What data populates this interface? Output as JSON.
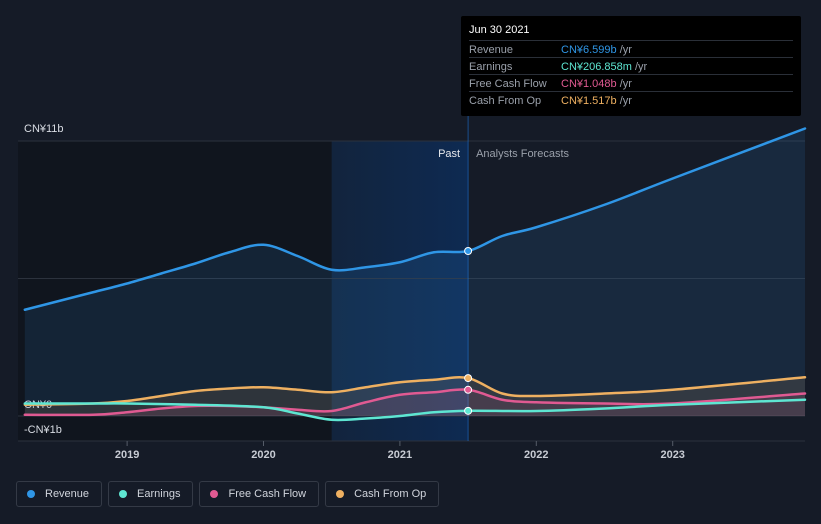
{
  "tooltip": {
    "date": "Jun 30 2021",
    "rows": [
      {
        "label": "Revenue",
        "value": "CN¥6.599b",
        "unit": "/yr",
        "color": "#2f96e6"
      },
      {
        "label": "Earnings",
        "value": "CN¥206.858m",
        "unit": "/yr",
        "color": "#5ee6d2"
      },
      {
        "label": "Free Cash Flow",
        "value": "CN¥1.048b",
        "unit": "/yr",
        "color": "#e05a92"
      },
      {
        "label": "Cash From Op",
        "value": "CN¥1.517b",
        "unit": "/yr",
        "color": "#eeb061"
      }
    ]
  },
  "legend": [
    {
      "label": "Revenue",
      "color": "#2f96e6"
    },
    {
      "label": "Earnings",
      "color": "#5ee6d2"
    },
    {
      "label": "Free Cash Flow",
      "color": "#e05a92"
    },
    {
      "label": "Cash From Op",
      "color": "#eeb061"
    }
  ],
  "chart_data": {
    "type": "line",
    "title": "",
    "xlabel": "",
    "ylabel": "",
    "past_label": "Past",
    "forecast_label": "Analysts Forecasts",
    "y_tick_labels": [
      "CN¥11b",
      "CN¥0",
      "-CN¥1b"
    ],
    "x_tick_labels": [
      "2019",
      "2020",
      "2021",
      "2022",
      "2023"
    ],
    "x_ticks": [
      2019.0,
      2020.0,
      2021.0,
      2022.0,
      2023.0
    ],
    "xlim": [
      2018.2,
      2023.97
    ],
    "ylim": [
      -1,
      11
    ],
    "past_start": 2020.5,
    "present": 2021.5,
    "grid": true,
    "series": [
      {
        "name": "Revenue",
        "color": "#2f96e6",
        "area": true,
        "points": [
          [
            2018.25,
            4.25
          ],
          [
            2018.5,
            4.6
          ],
          [
            2018.75,
            4.95
          ],
          [
            2019.0,
            5.3
          ],
          [
            2019.25,
            5.7
          ],
          [
            2019.5,
            6.1
          ],
          [
            2019.75,
            6.55
          ],
          [
            2020.0,
            6.85
          ],
          [
            2020.25,
            6.4
          ],
          [
            2020.5,
            5.85
          ],
          [
            2020.75,
            5.95
          ],
          [
            2021.0,
            6.15
          ],
          [
            2021.25,
            6.55
          ],
          [
            2021.5,
            6.6
          ],
          [
            2021.75,
            7.2
          ],
          [
            2022.0,
            7.55
          ],
          [
            2022.5,
            8.45
          ],
          [
            2023.0,
            9.5
          ],
          [
            2023.97,
            11.5
          ]
        ]
      },
      {
        "name": "Cash From Op",
        "color": "#eeb061",
        "area": true,
        "points": [
          [
            2018.25,
            0.45
          ],
          [
            2018.75,
            0.5
          ],
          [
            2019.0,
            0.6
          ],
          [
            2019.25,
            0.8
          ],
          [
            2019.5,
            1.0
          ],
          [
            2019.75,
            1.1
          ],
          [
            2020.0,
            1.15
          ],
          [
            2020.25,
            1.05
          ],
          [
            2020.5,
            0.95
          ],
          [
            2020.75,
            1.15
          ],
          [
            2021.0,
            1.35
          ],
          [
            2021.25,
            1.45
          ],
          [
            2021.5,
            1.517
          ],
          [
            2021.75,
            0.9
          ],
          [
            2022.0,
            0.8
          ],
          [
            2022.5,
            0.9
          ],
          [
            2023.0,
            1.05
          ],
          [
            2023.97,
            1.55
          ]
        ]
      },
      {
        "name": "Free Cash Flow",
        "color": "#e05a92",
        "area": true,
        "points": [
          [
            2018.25,
            0.05
          ],
          [
            2018.75,
            0.05
          ],
          [
            2019.0,
            0.15
          ],
          [
            2019.25,
            0.3
          ],
          [
            2019.5,
            0.4
          ],
          [
            2019.75,
            0.4
          ],
          [
            2020.0,
            0.35
          ],
          [
            2020.25,
            0.25
          ],
          [
            2020.5,
            0.2
          ],
          [
            2020.75,
            0.55
          ],
          [
            2021.0,
            0.85
          ],
          [
            2021.25,
            0.95
          ],
          [
            2021.5,
            1.048
          ],
          [
            2021.75,
            0.65
          ],
          [
            2022.0,
            0.55
          ],
          [
            2022.5,
            0.5
          ],
          [
            2023.0,
            0.5
          ],
          [
            2023.97,
            0.9
          ]
        ]
      },
      {
        "name": "Earnings",
        "color": "#5ee6d2",
        "area": false,
        "points": [
          [
            2018.25,
            0.5
          ],
          [
            2018.75,
            0.5
          ],
          [
            2019.0,
            0.5
          ],
          [
            2019.5,
            0.45
          ],
          [
            2020.0,
            0.35
          ],
          [
            2020.25,
            0.1
          ],
          [
            2020.5,
            -0.15
          ],
          [
            2020.75,
            -0.1
          ],
          [
            2021.0,
            0.0
          ],
          [
            2021.25,
            0.15
          ],
          [
            2021.5,
            0.207
          ],
          [
            2022.0,
            0.2
          ],
          [
            2022.5,
            0.3
          ],
          [
            2023.0,
            0.45
          ],
          [
            2023.97,
            0.65
          ]
        ]
      }
    ]
  }
}
